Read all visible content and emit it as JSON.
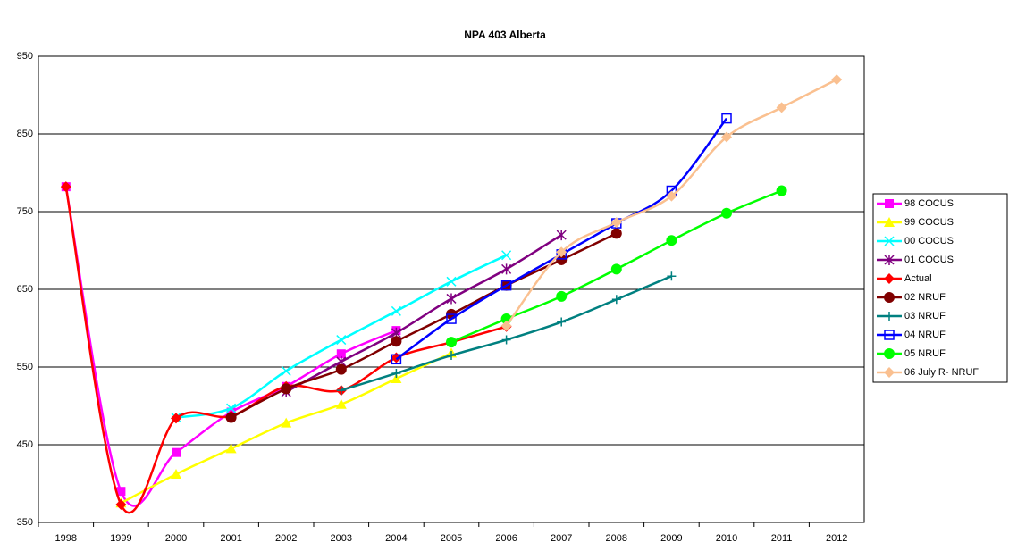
{
  "chart_data": {
    "type": "line",
    "title": "NPA 403 Alberta",
    "categories": [
      "1998",
      "1999",
      "2000",
      "2001",
      "2002",
      "2003",
      "2004",
      "2005",
      "2006",
      "2007",
      "2008",
      "2009",
      "2010",
      "2011",
      "2012"
    ],
    "ylim": [
      350,
      950
    ],
    "yticks": [
      350,
      450,
      550,
      650,
      750,
      850,
      950
    ],
    "grid": true,
    "legend": "right",
    "series": [
      {
        "name": "98 COCUS",
        "color": "#ff00ff",
        "marker": "square",
        "values": [
          782,
          390,
          440,
          492,
          525,
          567,
          597,
          null,
          null,
          null,
          null,
          null,
          null,
          null,
          null
        ]
      },
      {
        "name": "99 COCUS",
        "color": "#ffff00",
        "marker": "triangle",
        "values": [
          null,
          375,
          412,
          445,
          478,
          502,
          535,
          568,
          null,
          null,
          null,
          null,
          null,
          null,
          null
        ]
      },
      {
        "name": "00 COCUS",
        "color": "#00ffff",
        "marker": "x",
        "values": [
          null,
          null,
          485,
          497,
          545,
          585,
          622,
          660,
          694,
          null,
          null,
          null,
          null,
          null,
          null
        ]
      },
      {
        "name": "01 COCUS",
        "color": "#800080",
        "marker": "star",
        "values": [
          null,
          null,
          null,
          null,
          518,
          557,
          594,
          638,
          676,
          720,
          null,
          null,
          null,
          null,
          null
        ]
      },
      {
        "name": "Actual",
        "color": "#ff0000",
        "marker": "diamond",
        "values": [
          782,
          373,
          484,
          487,
          525,
          520,
          562,
          582,
          602,
          null,
          null,
          null,
          null,
          null,
          null
        ]
      },
      {
        "name": "02 NRUF",
        "color": "#800000",
        "marker": "circle",
        "values": [
          null,
          null,
          null,
          485,
          522,
          547,
          583,
          618,
          655,
          688,
          722,
          null,
          null,
          null,
          null
        ]
      },
      {
        "name": "03 NRUF",
        "color": "#008080",
        "marker": "plus",
        "values": [
          null,
          null,
          null,
          null,
          null,
          520,
          542,
          565,
          585,
          608,
          637,
          667,
          null,
          null,
          null
        ]
      },
      {
        "name": "04 NRUF",
        "color": "#0000ff",
        "marker": "opensquare",
        "values": [
          null,
          null,
          null,
          null,
          null,
          null,
          560,
          612,
          655,
          695,
          735,
          777,
          870,
          null,
          null
        ]
      },
      {
        "name": "05 NRUF",
        "color": "#00ff00",
        "marker": "circle",
        "values": [
          null,
          null,
          null,
          null,
          null,
          null,
          null,
          582,
          612,
          641,
          676,
          713,
          748,
          777,
          null
        ]
      },
      {
        "name": "06 July R- NRUF",
        "color": "#fac090",
        "marker": "diamond",
        "values": [
          null,
          null,
          null,
          null,
          null,
          null,
          null,
          null,
          603,
          698,
          736,
          770,
          846,
          884,
          920
        ]
      }
    ]
  }
}
